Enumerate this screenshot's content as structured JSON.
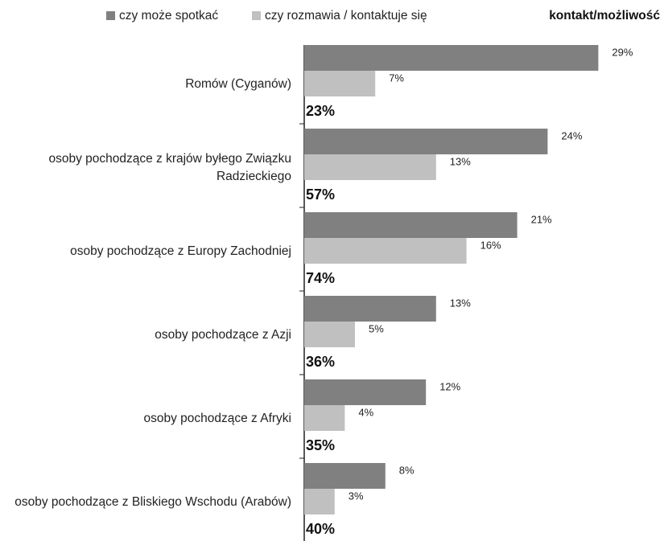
{
  "chart_data": {
    "type": "bar",
    "orientation": "horizontal",
    "categories": [
      "Romów (Cyganów)",
      "osoby pochodzące z krajów byłego Związku Radzieckiego",
      "osoby pochodzące z Europy Zachodniej",
      "osoby pochodzące z Azji",
      "osoby pochodzące z Afryki",
      "osoby pochodzące z Bliskiego Wschodu (Arabów)"
    ],
    "series": [
      {
        "name": "czy może spotkać",
        "color": "#808080",
        "values": [
          29,
          24,
          21,
          13,
          12,
          8
        ],
        "value_labels": [
          "29%",
          "24%",
          "21%",
          "13%",
          "12%",
          "8%"
        ]
      },
      {
        "name": "czy rozmawia / kontaktuje się",
        "color": "#c0c0c0",
        "values": [
          7,
          13,
          16,
          5,
          4,
          3
        ],
        "value_labels": [
          "7%",
          "13%",
          "16%",
          "5%",
          "4%",
          "3%"
        ]
      },
      {
        "name": "kontakt/możliwość",
        "values": [
          23,
          57,
          74,
          36,
          35,
          40
        ],
        "value_labels": [
          "23%",
          "57%",
          "74%",
          "36%",
          "35%",
          "40%"
        ]
      }
    ]
  }
}
